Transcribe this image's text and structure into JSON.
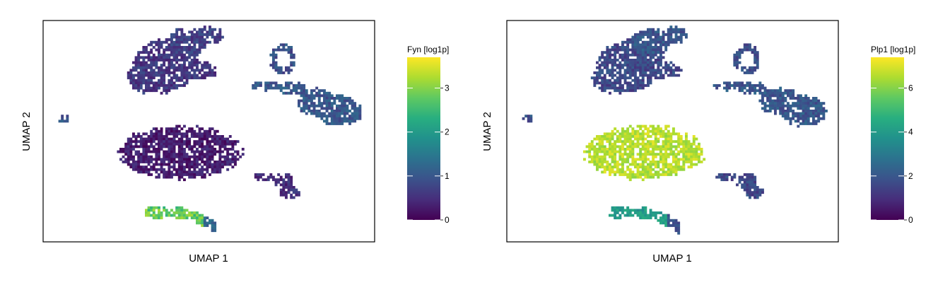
{
  "chart_data": [
    {
      "type": "heatmap",
      "subtype": "umap-embedding-hexbin",
      "xlabel": "UMAP 1",
      "ylabel": "UMAP 2",
      "colorbar": {
        "title": "Fyn [log1p]",
        "colormap": "viridis",
        "range": [
          0,
          3.7
        ],
        "ticks": [
          0,
          1,
          2,
          3
        ],
        "tick_labels": [
          "0",
          "1",
          "2",
          "3"
        ]
      },
      "clusters": [
        {
          "name": "upper-left",
          "level": 0.6
        },
        {
          "name": "top-center",
          "level": 0.7
        },
        {
          "name": "far-left-small",
          "level": 1.0
        },
        {
          "name": "center-large",
          "level": 0.3
        },
        {
          "name": "right-elongated",
          "level": 1.0
        },
        {
          "name": "right-ring",
          "level": 0.9
        },
        {
          "name": "small-center-right",
          "level": 0.5
        },
        {
          "name": "bottom-streak",
          "level": 2.8
        }
      ],
      "grid": false
    },
    {
      "type": "heatmap",
      "subtype": "umap-embedding-hexbin",
      "xlabel": "UMAP 1",
      "ylabel": "UMAP 2",
      "colorbar": {
        "title": "Plp1 [log1p]",
        "colormap": "viridis",
        "range": [
          0,
          7.4
        ],
        "ticks": [
          0,
          2,
          4,
          6
        ],
        "tick_labels": [
          "0",
          "2",
          "4",
          "6"
        ]
      },
      "clusters": [
        {
          "name": "upper-left",
          "level": 1.6
        },
        {
          "name": "top-center",
          "level": 2.0
        },
        {
          "name": "far-left-small",
          "level": 1.8
        },
        {
          "name": "center-large",
          "level": 6.6
        },
        {
          "name": "right-elongated",
          "level": 2.0
        },
        {
          "name": "right-ring",
          "level": 1.7
        },
        {
          "name": "small-center-right",
          "level": 1.6
        },
        {
          "name": "bottom-streak",
          "level": 4.0
        }
      ],
      "grid": false
    }
  ]
}
